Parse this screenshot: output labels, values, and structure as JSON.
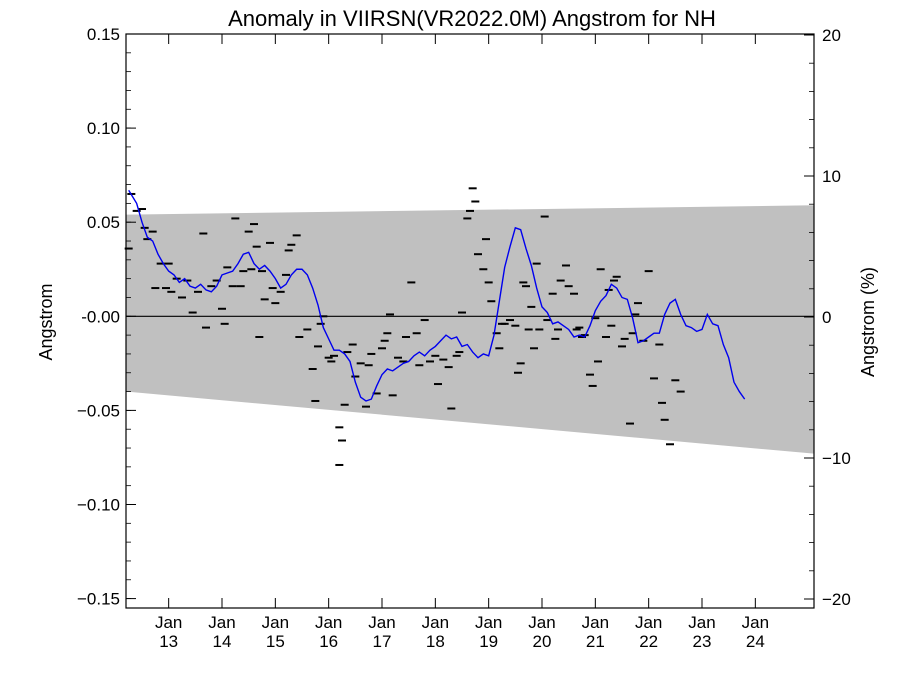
{
  "chart_data": {
    "type": "line",
    "title": "Anomaly in VIIRSN(VR2022.0M) Angstrom for NH",
    "ylabel": "Angstrom",
    "ylabel_right": "Angstrom (%)",
    "ylim": [
      -0.155,
      0.15
    ],
    "ylim_right": [
      -20,
      20
    ],
    "x_range": [
      2012.0,
      2024.9
    ],
    "y_ticks": [
      {
        "v": 0.15,
        "label": "0.15"
      },
      {
        "v": 0.1,
        "label": "0.10"
      },
      {
        "v": 0.05,
        "label": "0.05"
      },
      {
        "v": 0.0,
        "label": "-0.00"
      },
      {
        "v": -0.05,
        "label": "−0.05"
      },
      {
        "v": -0.1,
        "label": "−0.10"
      },
      {
        "v": -0.15,
        "label": "−0.15"
      }
    ],
    "y_ticks_right": [
      {
        "v": 20,
        "label": "20"
      },
      {
        "v": 10,
        "label": "10"
      },
      {
        "v": 0,
        "label": "0"
      },
      {
        "v": -10,
        "label": "−10"
      },
      {
        "v": -20,
        "label": "−20"
      }
    ],
    "x_ticks": [
      {
        "v": 2012.8,
        "month": "Jan",
        "year": "13"
      },
      {
        "v": 2013.8,
        "month": "Jan",
        "year": "14"
      },
      {
        "v": 2014.8,
        "month": "Jan",
        "year": "15"
      },
      {
        "v": 2015.8,
        "month": "Jan",
        "year": "16"
      },
      {
        "v": 2016.8,
        "month": "Jan",
        "year": "17"
      },
      {
        "v": 2017.8,
        "month": "Jan",
        "year": "18"
      },
      {
        "v": 2018.8,
        "month": "Jan",
        "year": "19"
      },
      {
        "v": 2019.8,
        "month": "Jan",
        "year": "20"
      },
      {
        "v": 2020.8,
        "month": "Jan",
        "year": "21"
      },
      {
        "v": 2021.8,
        "month": "Jan",
        "year": "22"
      },
      {
        "v": 2022.8,
        "month": "Jan",
        "year": "23"
      },
      {
        "v": 2023.8,
        "month": "Jan",
        "year": "24"
      }
    ],
    "band": {
      "upper": [
        [
          2012.0,
          0.054
        ],
        [
          2024.9,
          0.059
        ]
      ],
      "lower": [
        [
          2012.0,
          -0.04
        ],
        [
          2024.9,
          -0.073
        ]
      ]
    },
    "zero_line": 0,
    "colors": {
      "line": "#0000ee",
      "band": "#c0c0c0",
      "markers": "#000000"
    },
    "series": [
      {
        "type": "line",
        "values": [
          [
            2012.05,
            0.067
          ],
          [
            2012.2,
            0.06
          ],
          [
            2012.3,
            0.05
          ],
          [
            2012.4,
            0.042
          ],
          [
            2012.5,
            0.04
          ],
          [
            2012.6,
            0.033
          ],
          [
            2012.7,
            0.028
          ],
          [
            2012.8,
            0.024
          ],
          [
            2012.9,
            0.022
          ],
          [
            2013.0,
            0.018
          ],
          [
            2013.1,
            0.02
          ],
          [
            2013.2,
            0.016
          ],
          [
            2013.3,
            0.015
          ],
          [
            2013.4,
            0.017
          ],
          [
            2013.5,
            0.014
          ],
          [
            2013.6,
            0.013
          ],
          [
            2013.7,
            0.016
          ],
          [
            2013.8,
            0.022
          ],
          [
            2013.9,
            0.023
          ],
          [
            2014.0,
            0.024
          ],
          [
            2014.1,
            0.028
          ],
          [
            2014.2,
            0.033
          ],
          [
            2014.3,
            0.034
          ],
          [
            2014.4,
            0.028
          ],
          [
            2014.5,
            0.025
          ],
          [
            2014.6,
            0.027
          ],
          [
            2014.7,
            0.024
          ],
          [
            2014.8,
            0.02
          ],
          [
            2014.9,
            0.015
          ],
          [
            2015.0,
            0.017
          ],
          [
            2015.1,
            0.022
          ],
          [
            2015.2,
            0.025
          ],
          [
            2015.3,
            0.025
          ],
          [
            2015.4,
            0.022
          ],
          [
            2015.5,
            0.015
          ],
          [
            2015.6,
            0.006
          ],
          [
            2015.7,
            -0.006
          ],
          [
            2015.8,
            -0.012
          ],
          [
            2015.9,
            -0.018
          ],
          [
            2016.0,
            -0.018
          ],
          [
            2016.1,
            -0.02
          ],
          [
            2016.2,
            -0.024
          ],
          [
            2016.3,
            -0.035
          ],
          [
            2016.4,
            -0.043
          ],
          [
            2016.5,
            -0.045
          ],
          [
            2016.6,
            -0.044
          ],
          [
            2016.7,
            -0.037
          ],
          [
            2016.8,
            -0.031
          ],
          [
            2016.9,
            -0.028
          ],
          [
            2017.0,
            -0.029
          ],
          [
            2017.1,
            -0.027
          ],
          [
            2017.2,
            -0.025
          ],
          [
            2017.3,
            -0.024
          ],
          [
            2017.4,
            -0.021
          ],
          [
            2017.5,
            -0.019
          ],
          [
            2017.6,
            -0.021
          ],
          [
            2017.7,
            -0.018
          ],
          [
            2017.8,
            -0.016
          ],
          [
            2017.9,
            -0.013
          ],
          [
            2018.0,
            -0.01
          ],
          [
            2018.1,
            -0.012
          ],
          [
            2018.2,
            -0.011
          ],
          [
            2018.3,
            -0.016
          ],
          [
            2018.4,
            -0.015
          ],
          [
            2018.5,
            -0.019
          ],
          [
            2018.6,
            -0.022
          ],
          [
            2018.7,
            -0.02
          ],
          [
            2018.8,
            -0.021
          ],
          [
            2018.9,
            -0.01
          ],
          [
            2019.0,
            0.008
          ],
          [
            2019.1,
            0.026
          ],
          [
            2019.2,
            0.037
          ],
          [
            2019.3,
            0.047
          ],
          [
            2019.4,
            0.046
          ],
          [
            2019.5,
            0.036
          ],
          [
            2019.6,
            0.027
          ],
          [
            2019.7,
            0.015
          ],
          [
            2019.8,
            0.005
          ],
          [
            2019.9,
            0.002
          ],
          [
            2020.0,
            -0.004
          ],
          [
            2020.1,
            -0.003
          ],
          [
            2020.2,
            -0.005
          ],
          [
            2020.3,
            -0.007
          ],
          [
            2020.4,
            -0.011
          ],
          [
            2020.5,
            -0.01
          ],
          [
            2020.6,
            -0.011
          ],
          [
            2020.7,
            -0.005
          ],
          [
            2020.8,
            0.003
          ],
          [
            2020.9,
            0.008
          ],
          [
            2021.0,
            0.011
          ],
          [
            2021.1,
            0.017
          ],
          [
            2021.2,
            0.015
          ],
          [
            2021.3,
            0.01
          ],
          [
            2021.4,
            0.009
          ],
          [
            2021.5,
            -0.001
          ],
          [
            2021.6,
            -0.014
          ],
          [
            2021.7,
            -0.013
          ],
          [
            2021.8,
            -0.011
          ],
          [
            2021.9,
            -0.009
          ],
          [
            2022.0,
            -0.009
          ],
          [
            2022.1,
            0.001
          ],
          [
            2022.2,
            0.007
          ],
          [
            2022.3,
            0.009
          ],
          [
            2022.4,
            0.001
          ],
          [
            2022.5,
            -0.005
          ],
          [
            2022.6,
            -0.006
          ],
          [
            2022.7,
            -0.008
          ],
          [
            2022.8,
            -0.007
          ],
          [
            2022.9,
            0.001
          ],
          [
            2023.0,
            -0.004
          ],
          [
            2023.1,
            -0.005
          ],
          [
            2023.2,
            -0.015
          ],
          [
            2023.3,
            -0.022
          ],
          [
            2023.4,
            -0.035
          ],
          [
            2023.5,
            -0.04
          ],
          [
            2023.6,
            -0.044
          ]
        ]
      },
      {
        "type": "scatter",
        "values": [
          [
            2012.05,
            0.036
          ],
          [
            2012.1,
            0.065
          ],
          [
            2012.2,
            0.056
          ],
          [
            2012.3,
            0.057
          ],
          [
            2012.35,
            0.047
          ],
          [
            2012.4,
            0.041
          ],
          [
            2012.5,
            0.045
          ],
          [
            2012.55,
            0.015
          ],
          [
            2012.65,
            0.028
          ],
          [
            2012.75,
            0.015
          ],
          [
            2012.8,
            0.028
          ],
          [
            2012.85,
            0.013
          ],
          [
            2012.95,
            0.02
          ],
          [
            2013.05,
            0.01
          ],
          [
            2013.15,
            0.019
          ],
          [
            2013.25,
            0.002
          ],
          [
            2013.35,
            0.013
          ],
          [
            2013.45,
            0.044
          ],
          [
            2013.5,
            -0.006
          ],
          [
            2013.6,
            0.016
          ],
          [
            2013.7,
            0.019
          ],
          [
            2013.8,
            0.004
          ],
          [
            2013.85,
            -0.004
          ],
          [
            2013.9,
            0.026
          ],
          [
            2014.0,
            0.016
          ],
          [
            2014.05,
            0.052
          ],
          [
            2014.15,
            0.016
          ],
          [
            2014.2,
            0.024
          ],
          [
            2014.3,
            0.045
          ],
          [
            2014.35,
            0.025
          ],
          [
            2014.4,
            0.049
          ],
          [
            2014.45,
            0.037
          ],
          [
            2014.5,
            -0.011
          ],
          [
            2014.55,
            0.024
          ],
          [
            2014.6,
            0.009
          ],
          [
            2014.7,
            0.039
          ],
          [
            2014.75,
            0.015
          ],
          [
            2014.8,
            0.007
          ],
          [
            2014.9,
            0.013
          ],
          [
            2015.0,
            0.022
          ],
          [
            2015.05,
            0.035
          ],
          [
            2015.1,
            0.038
          ],
          [
            2015.2,
            0.043
          ],
          [
            2015.25,
            -0.011
          ],
          [
            2015.4,
            -0.007
          ],
          [
            2015.5,
            -0.028
          ],
          [
            2015.55,
            -0.045
          ],
          [
            2015.6,
            -0.016
          ],
          [
            2015.65,
            -0.004
          ],
          [
            2015.7,
            0.0
          ],
          [
            2015.8,
            -0.022
          ],
          [
            2015.85,
            -0.024
          ],
          [
            2015.9,
            -0.021
          ],
          [
            2016.0,
            -0.059
          ],
          [
            2016.05,
            -0.066
          ],
          [
            2016.0,
            -0.079
          ],
          [
            2016.1,
            -0.047
          ],
          [
            2016.15,
            -0.019
          ],
          [
            2016.25,
            -0.015
          ],
          [
            2016.3,
            -0.032
          ],
          [
            2016.4,
            -0.025
          ],
          [
            2016.5,
            -0.048
          ],
          [
            2016.55,
            -0.026
          ],
          [
            2016.6,
            -0.02
          ],
          [
            2016.7,
            -0.041
          ],
          [
            2016.8,
            -0.017
          ],
          [
            2016.85,
            -0.013
          ],
          [
            2016.9,
            -0.009
          ],
          [
            2016.95,
            0.001
          ],
          [
            2017.0,
            -0.042
          ],
          [
            2017.1,
            -0.022
          ],
          [
            2017.2,
            -0.024
          ],
          [
            2017.25,
            -0.011
          ],
          [
            2017.35,
            0.018
          ],
          [
            2017.45,
            -0.009
          ],
          [
            2017.5,
            -0.026
          ],
          [
            2017.6,
            -0.002
          ],
          [
            2017.7,
            -0.024
          ],
          [
            2017.8,
            -0.021
          ],
          [
            2017.85,
            -0.036
          ],
          [
            2017.95,
            -0.023
          ],
          [
            2018.05,
            -0.027
          ],
          [
            2018.1,
            -0.049
          ],
          [
            2018.2,
            -0.021
          ],
          [
            2018.25,
            -0.019
          ],
          [
            2018.3,
            0.002
          ],
          [
            2018.4,
            0.052
          ],
          [
            2018.45,
            0.056
          ],
          [
            2018.5,
            0.068
          ],
          [
            2018.55,
            0.061
          ],
          [
            2018.6,
            0.033
          ],
          [
            2018.7,
            0.025
          ],
          [
            2018.75,
            0.041
          ],
          [
            2018.8,
            0.018
          ],
          [
            2018.85,
            0.008
          ],
          [
            2018.95,
            -0.009
          ],
          [
            2019.0,
            -0.017
          ],
          [
            2019.05,
            -0.004
          ],
          [
            2019.1,
            -0.004
          ],
          [
            2019.2,
            -0.002
          ],
          [
            2019.3,
            -0.005
          ],
          [
            2019.35,
            -0.03
          ],
          [
            2019.4,
            -0.025
          ],
          [
            2019.45,
            0.018
          ],
          [
            2019.5,
            0.016
          ],
          [
            2019.55,
            -0.007
          ],
          [
            2019.6,
            0.005
          ],
          [
            2019.65,
            -0.017
          ],
          [
            2019.7,
            0.028
          ],
          [
            2019.75,
            -0.007
          ],
          [
            2019.85,
            0.053
          ],
          [
            2019.9,
            -0.002
          ],
          [
            2020.0,
            0.012
          ],
          [
            2020.05,
            -0.012
          ],
          [
            2020.1,
            -0.007
          ],
          [
            2020.15,
            0.019
          ],
          [
            2020.25,
            0.027
          ],
          [
            2020.3,
            0.016
          ],
          [
            2020.4,
            0.012
          ],
          [
            2020.45,
            -0.007
          ],
          [
            2020.5,
            -0.006
          ],
          [
            2020.55,
            -0.011
          ],
          [
            2020.6,
            -0.01
          ],
          [
            2020.7,
            -0.031
          ],
          [
            2020.75,
            -0.037
          ],
          [
            2020.8,
            -0.001
          ],
          [
            2020.85,
            -0.024
          ],
          [
            2020.9,
            0.025
          ],
          [
            2021.0,
            -0.011
          ],
          [
            2021.05,
            0.014
          ],
          [
            2021.1,
            -0.005
          ],
          [
            2021.15,
            0.019
          ],
          [
            2021.2,
            0.021
          ],
          [
            2021.3,
            -0.016
          ],
          [
            2021.35,
            -0.012
          ],
          [
            2021.45,
            -0.057
          ],
          [
            2021.5,
            -0.009
          ],
          [
            2021.55,
            0.001
          ],
          [
            2021.6,
            0.007
          ],
          [
            2021.7,
            -0.013
          ],
          [
            2021.8,
            0.024
          ],
          [
            2021.9,
            -0.033
          ],
          [
            2022.0,
            -0.015
          ],
          [
            2022.05,
            -0.046
          ],
          [
            2022.1,
            -0.055
          ],
          [
            2022.2,
            -0.068
          ],
          [
            2022.3,
            -0.034
          ],
          [
            2022.4,
            -0.04
          ]
        ]
      }
    ]
  }
}
